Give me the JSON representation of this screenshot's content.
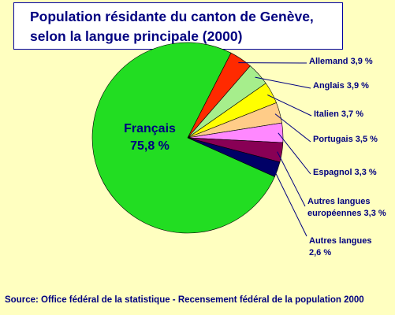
{
  "title": {
    "line1": "Population résidante du canton de Genève,",
    "line2": "selon la langue principale (2000)"
  },
  "source": "Source: Office fédéral de la statistique - Recensement fédéral de la population 2000",
  "chart_data": {
    "type": "pie",
    "title": "Population résidante du canton de Genève, selon la langue principale (2000)",
    "slices": [
      {
        "label": "Français",
        "value_text": "75,8 %",
        "value": 75.8,
        "color": "#22dd22"
      },
      {
        "label": "Allemand",
        "value_text": "3,9 %",
        "value": 3.9,
        "color": "#ff2a00"
      },
      {
        "label": "Anglais",
        "value_text": "3,9 %",
        "value": 3.9,
        "color": "#a6ee8c"
      },
      {
        "label": "Italien",
        "value_text": "3,7 %",
        "value": 3.7,
        "color": "#ffff00"
      },
      {
        "label": "Portugais",
        "value_text": "3,5 %",
        "value": 3.5,
        "color": "#ffcc88"
      },
      {
        "label": "Espagnol",
        "value_text": "3,3 %",
        "value": 3.3,
        "color": "#ff88ff"
      },
      {
        "label": "Autres langues européennes",
        "value_text": "3,3 %",
        "value": 3.3,
        "color": "#880055"
      },
      {
        "label": "Autres langues",
        "value_text": "2,6 %",
        "value": 2.6,
        "color": "#000066"
      }
    ]
  },
  "labels": {
    "francais_name": "Français",
    "francais_value": "75,8 %",
    "allemand": "Allemand 3,9 %",
    "anglais": "Anglais 3,9 %",
    "italien": "Italien 3,7 %",
    "portugais": "Portugais 3,5 %",
    "espagnol": "Espagnol 3,3 %",
    "autres_eur_1": "Autres langues",
    "autres_eur_2": "européennes 3,3 %",
    "autres_1": "Autres langues",
    "autres_2": "2,6 %"
  }
}
